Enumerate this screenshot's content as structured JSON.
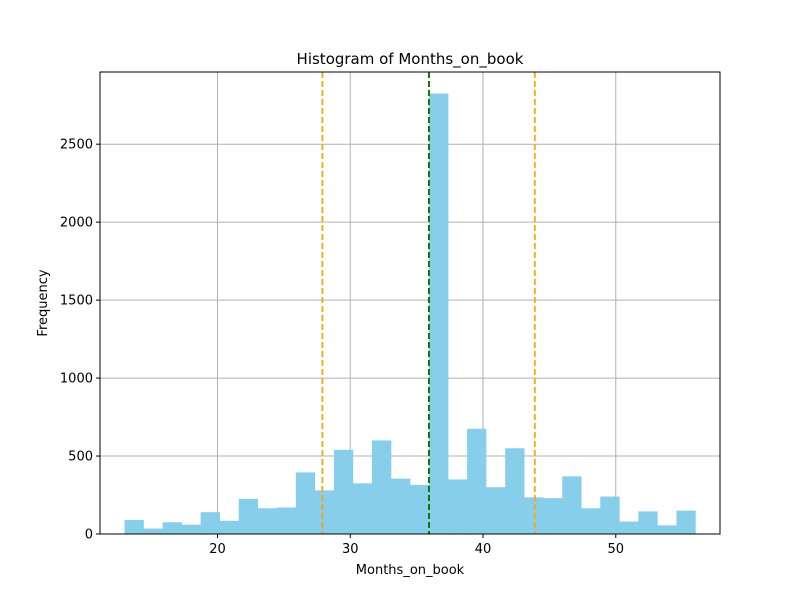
{
  "chart_data": {
    "type": "bar",
    "title": "Histogram of Months_on_book",
    "xlabel": "Months_on_book",
    "ylabel": "Frequency",
    "xlim": [
      11.15,
      57.85
    ],
    "ylim": [
      0,
      2963
    ],
    "xticks": [
      20,
      30,
      40,
      50
    ],
    "yticks": [
      0,
      500,
      1000,
      1500,
      2000,
      2500
    ],
    "grid": true,
    "bar_color": "#87CEEB",
    "bins": [
      {
        "x0": 13.0,
        "x1": 14.43,
        "value": 90
      },
      {
        "x0": 14.43,
        "x1": 15.87,
        "value": 35
      },
      {
        "x0": 15.87,
        "x1": 17.3,
        "value": 75
      },
      {
        "x0": 17.3,
        "x1": 18.73,
        "value": 60
      },
      {
        "x0": 18.73,
        "x1": 20.17,
        "value": 140
      },
      {
        "x0": 20.17,
        "x1": 21.6,
        "value": 85
      },
      {
        "x0": 21.6,
        "x1": 23.03,
        "value": 225
      },
      {
        "x0": 23.03,
        "x1": 24.47,
        "value": 165
      },
      {
        "x0": 24.47,
        "x1": 25.9,
        "value": 170
      },
      {
        "x0": 25.9,
        "x1": 27.33,
        "value": 395
      },
      {
        "x0": 27.33,
        "x1": 28.77,
        "value": 280
      },
      {
        "x0": 28.77,
        "x1": 30.2,
        "value": 540
      },
      {
        "x0": 30.2,
        "x1": 31.63,
        "value": 325
      },
      {
        "x0": 31.63,
        "x1": 33.07,
        "value": 600
      },
      {
        "x0": 33.07,
        "x1": 34.5,
        "value": 355
      },
      {
        "x0": 34.5,
        "x1": 35.93,
        "value": 315
      },
      {
        "x0": 35.93,
        "x1": 37.37,
        "value": 2825
      },
      {
        "x0": 37.37,
        "x1": 38.8,
        "value": 350
      },
      {
        "x0": 38.8,
        "x1": 40.23,
        "value": 675
      },
      {
        "x0": 40.23,
        "x1": 41.67,
        "value": 300
      },
      {
        "x0": 41.67,
        "x1": 43.1,
        "value": 550
      },
      {
        "x0": 43.1,
        "x1": 44.53,
        "value": 235
      },
      {
        "x0": 44.53,
        "x1": 45.97,
        "value": 230
      },
      {
        "x0": 45.97,
        "x1": 47.4,
        "value": 370
      },
      {
        "x0": 47.4,
        "x1": 48.83,
        "value": 165
      },
      {
        "x0": 48.83,
        "x1": 50.27,
        "value": 240
      },
      {
        "x0": 50.27,
        "x1": 51.7,
        "value": 80
      },
      {
        "x0": 51.7,
        "x1": 53.13,
        "value": 145
      },
      {
        "x0": 53.13,
        "x1": 54.57,
        "value": 55
      },
      {
        "x0": 54.57,
        "x1": 56.0,
        "value": 150
      }
    ],
    "vlines": [
      {
        "x": 27.9,
        "color": "#FFA500",
        "style": "dashed"
      },
      {
        "x": 35.93,
        "color": "#FF0000",
        "style": "dashed"
      },
      {
        "x": 35.93,
        "color": "#008000",
        "style": "dashed"
      },
      {
        "x": 43.9,
        "color": "#FFA500",
        "style": "dashed"
      }
    ]
  }
}
